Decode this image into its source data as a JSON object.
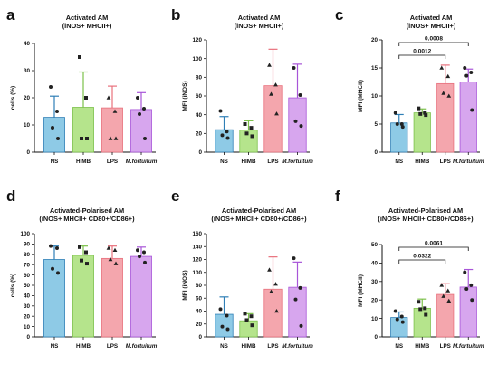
{
  "colors": {
    "categories": [
      "#8ecae6",
      "#b5e48c",
      "#f4a6ad",
      "#d7a6ee"
    ],
    "errors": [
      "#2f7fb6",
      "#7cc04a",
      "#e8707c",
      "#a855d8"
    ],
    "points": "#222222"
  },
  "chart_data": [
    {
      "type": "bar",
      "letter": "a",
      "title": [
        "Activated AM",
        "(iNOS+ MHCII+)"
      ],
      "ylabel": "cells (%)",
      "ylim": [
        0,
        40
      ],
      "yticks": [
        0,
        10,
        20,
        30,
        40
      ],
      "categories": [
        "NS",
        "HIMB",
        "LPS",
        "M.fortuitum"
      ],
      "values": [
        12.8,
        16.5,
        16.3,
        15.7
      ],
      "errors": [
        7.8,
        13,
        8,
        6.2
      ],
      "points": [
        [
          24,
          15,
          9,
          5
        ],
        [
          35,
          20,
          5,
          5
        ],
        [
          20,
          15,
          5,
          5
        ],
        [
          20,
          16,
          14,
          5
        ]
      ],
      "significance": []
    },
    {
      "type": "bar",
      "letter": "b",
      "title": [
        "Activated AM",
        "(iNOS+ MHCII+)"
      ],
      "ylabel": "MFI (iNOS)",
      "ylim": [
        0,
        120
      ],
      "yticks": [
        0,
        20,
        40,
        60,
        80,
        100,
        120
      ],
      "categories": [
        "NS",
        "HIMB",
        "LPS",
        "M.fortuitum"
      ],
      "values": [
        24,
        23.5,
        71,
        58
      ],
      "errors": [
        14,
        10,
        39,
        36
      ],
      "points": [
        [
          44,
          22,
          18,
          15
        ],
        [
          30,
          26,
          20,
          17
        ],
        [
          93,
          72,
          62,
          41
        ],
        [
          90,
          61,
          33,
          28
        ]
      ],
      "significance": []
    },
    {
      "type": "bar",
      "letter": "c",
      "title": [
        "Activated AM",
        "(iNOS+ MHCII+)"
      ],
      "ylabel": "MFI (MHCII)",
      "ylim": [
        0,
        20
      ],
      "yticks": [
        0,
        5,
        10,
        15,
        20
      ],
      "categories": [
        "NS",
        "HIMB",
        "LPS",
        "M.fortuitum"
      ],
      "values": [
        5.2,
        7,
        12.2,
        12.5
      ],
      "errors": [
        1.5,
        0.7,
        3.3,
        2.3
      ],
      "points": [
        [
          7,
          5,
          5,
          4.5
        ],
        [
          7.8,
          7,
          6.8,
          6.6
        ],
        [
          15,
          13.5,
          10.5,
          10
        ],
        [
          15,
          14.2,
          13.6,
          7.5
        ]
      ],
      "significance": [
        {
          "from": 0,
          "to": 3,
          "label": "0.0008"
        },
        {
          "from": 0,
          "to": 2,
          "label": "0.0012"
        }
      ]
    },
    {
      "type": "bar",
      "letter": "d",
      "title": [
        "Activated-Polarised AM",
        "(iNOS+ MHCII+ CD80+/CD86+)"
      ],
      "ylabel": "cells (%)",
      "ylim": [
        0,
        100
      ],
      "yticks": [
        0,
        10,
        20,
        30,
        40,
        50,
        60,
        70,
        80,
        90,
        100
      ],
      "categories": [
        "NS",
        "HIMB",
        "LPS",
        "M.fortuitum"
      ],
      "values": [
        75,
        79,
        76,
        78
      ],
      "errors": [
        13,
        9,
        12,
        9
      ],
      "points": [
        [
          88,
          86,
          66,
          62
        ],
        [
          87,
          82,
          74,
          71
        ],
        [
          86,
          84,
          75,
          71
        ],
        [
          84,
          82,
          78,
          72
        ]
      ],
      "significance": []
    },
    {
      "type": "bar",
      "letter": "e",
      "title": [
        "Activated-Polarised AM",
        "(iNOS+ MHCII+ CD80+/CD86+)"
      ],
      "ylabel": "MFI (iNOS)",
      "ylim": [
        0,
        160
      ],
      "yticks": [
        0,
        20,
        40,
        60,
        80,
        100,
        120,
        140,
        160
      ],
      "categories": [
        "NS",
        "HIMB",
        "LPS",
        "M.fortuitum"
      ],
      "values": [
        35,
        25,
        74,
        77
      ],
      "errors": [
        27,
        11,
        50,
        39
      ],
      "points": [
        [
          43,
          33,
          16,
          12
        ],
        [
          36,
          32,
          26,
          18
        ],
        [
          104,
          82,
          70,
          40
        ],
        [
          122,
          76,
          58,
          17
        ]
      ],
      "significance": []
    },
    {
      "type": "bar",
      "letter": "f",
      "title": [
        "Activated-Polarised AM",
        "(iNOS+ MHCII+ CD80+/CD86+)"
      ],
      "ylabel": "MFI (MHCII)",
      "ylim": [
        0,
        50
      ],
      "yticks": [
        0,
        10,
        20,
        30,
        40,
        50
      ],
      "categories": [
        "NS",
        "HIMB",
        "LPS",
        "M.fortuitum"
      ],
      "values": [
        10.5,
        15.5,
        23,
        27
      ],
      "errors": [
        3,
        5,
        5.8,
        9.5
      ],
      "points": [
        [
          14,
          11,
          9.5,
          8
        ],
        [
          19,
          15.5,
          15,
          12
        ],
        [
          28,
          25,
          22,
          19.5
        ],
        [
          35,
          28,
          26,
          20
        ]
      ],
      "significance": [
        {
          "from": 0,
          "to": 3,
          "label": "0.0061"
        },
        {
          "from": 0,
          "to": 2,
          "label": "0.0322"
        }
      ]
    }
  ]
}
